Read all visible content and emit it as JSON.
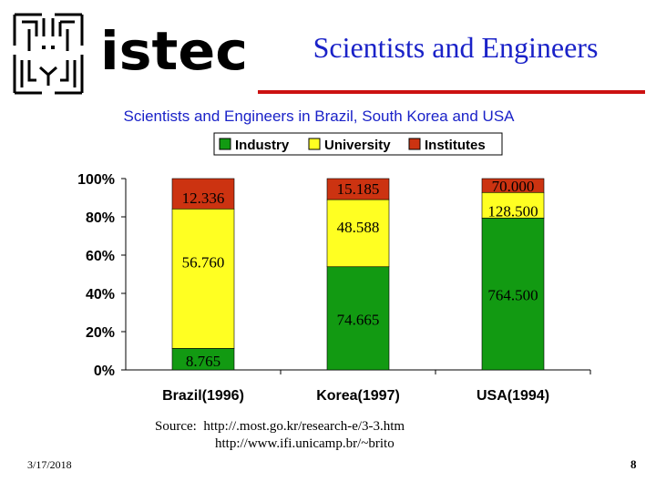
{
  "header": {
    "logo_text": "istec",
    "title": "Scientists and Engineers",
    "title_color": "#1a22c8",
    "rule_color": "#cc1111"
  },
  "chart_data": {
    "type": "bar",
    "stacked": "percent",
    "title": "Scientists and Engineers in Brazil, South Korea and USA",
    "categories": [
      "Brazil(1996)",
      "Korea(1997)",
      "USA(1994)"
    ],
    "series": [
      {
        "name": "Industry",
        "color": "#129a12",
        "values": [
          8.765,
          74.665,
          764.5
        ],
        "labels": [
          "8.765",
          "74.665",
          "764.500"
        ]
      },
      {
        "name": "University",
        "color": "#ffff22",
        "values": [
          56.76,
          48.588,
          128.5
        ],
        "labels": [
          "56.760",
          "48.588",
          "128.500"
        ]
      },
      {
        "name": "Institutes",
        "color": "#cc3311",
        "values": [
          12.336,
          15.185,
          70.0
        ],
        "labels": [
          "12.336",
          "15.185",
          "70.000"
        ]
      }
    ],
    "ylim": [
      0,
      100
    ],
    "yticks": [
      "0%",
      "20%",
      "40%",
      "60%",
      "80%",
      "100%"
    ],
    "legend_position": "top",
    "grid": false
  },
  "source": {
    "line1": "Source:  http://.most.go.kr/research-e/3-3.htm",
    "line2": "http://www.ifi.unicamp.br/~brito"
  },
  "footer": {
    "date": "3/17/2018",
    "page": "8"
  }
}
